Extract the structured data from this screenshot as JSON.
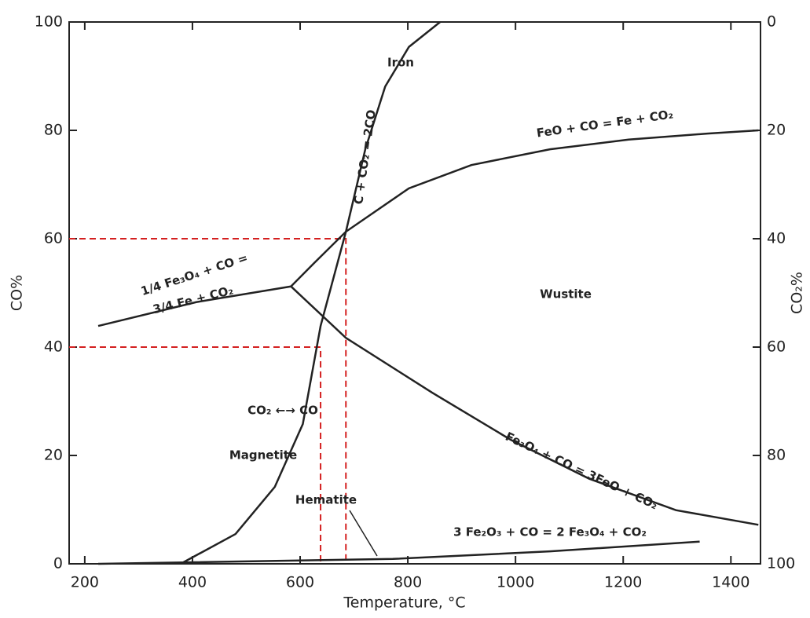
{
  "chart_data": {
    "type": "line",
    "x_label": "Temperature, °C",
    "y_label": "CO%",
    "y2_label": "CO₂%",
    "xlim": [
      171,
      1455
    ],
    "xticks": [
      200,
      400,
      600,
      800,
      1000,
      1200,
      1400
    ],
    "ylim": [
      0,
      100
    ],
    "yticks": [
      0,
      20,
      40,
      60,
      80,
      100
    ],
    "y2lim": [
      100,
      0
    ],
    "y2ticks": [
      0,
      20,
      40,
      60,
      80,
      100
    ],
    "color": "#222222",
    "series": [
      {
        "x": [
          378,
          480,
          553,
          605,
          638,
          685,
          721,
          758,
          802,
          860
        ],
        "y": [
          0,
          5.5,
          14.2,
          25.8,
          43.9,
          61.3,
          76.5,
          88.1,
          95.4,
          100
        ]
      },
      {
        "x": [
          583,
          626,
          685,
          802,
          918,
          1064,
          1210,
          1356,
          1451
        ],
        "y": [
          51.2,
          55.5,
          61.3,
          69.3,
          73.6,
          76.5,
          78.3,
          79.4,
          80
        ]
      },
      {
        "x": [
          225,
          407,
          583
        ],
        "y": [
          43.9,
          48.3,
          51.2
        ]
      },
      {
        "x": [
          583,
          685,
          845,
          991,
          1137,
          1298,
          1451
        ],
        "y": [
          51.2,
          41.7,
          31.6,
          22.9,
          15.7,
          9.9,
          7.2
        ]
      },
      {
        "x": [
          225,
          772,
          1064,
          1342
        ],
        "y": [
          0,
          0.9,
          2.3,
          4.1
        ]
      }
    ],
    "reference_points": {
      "color": "#d42020",
      "x": [
        638,
        685
      ],
      "y": [
        40,
        60
      ]
    },
    "annotations": [
      "Iron",
      "C + CO₂ = 2CO",
      "FeO + CO = Fe + CO₂",
      "1/4 Fe₃O₄ + CO =",
      "3/4 Fe + CO₂",
      "Wustite",
      "CO₂ ←→ CO",
      "Magnetite",
      "Hematite",
      "Fe₃O₄ + CO = 3FeO + CO₂",
      "3 Fe₂O₃ + CO = 2 Fe₃O₄ + CO₂"
    ]
  }
}
